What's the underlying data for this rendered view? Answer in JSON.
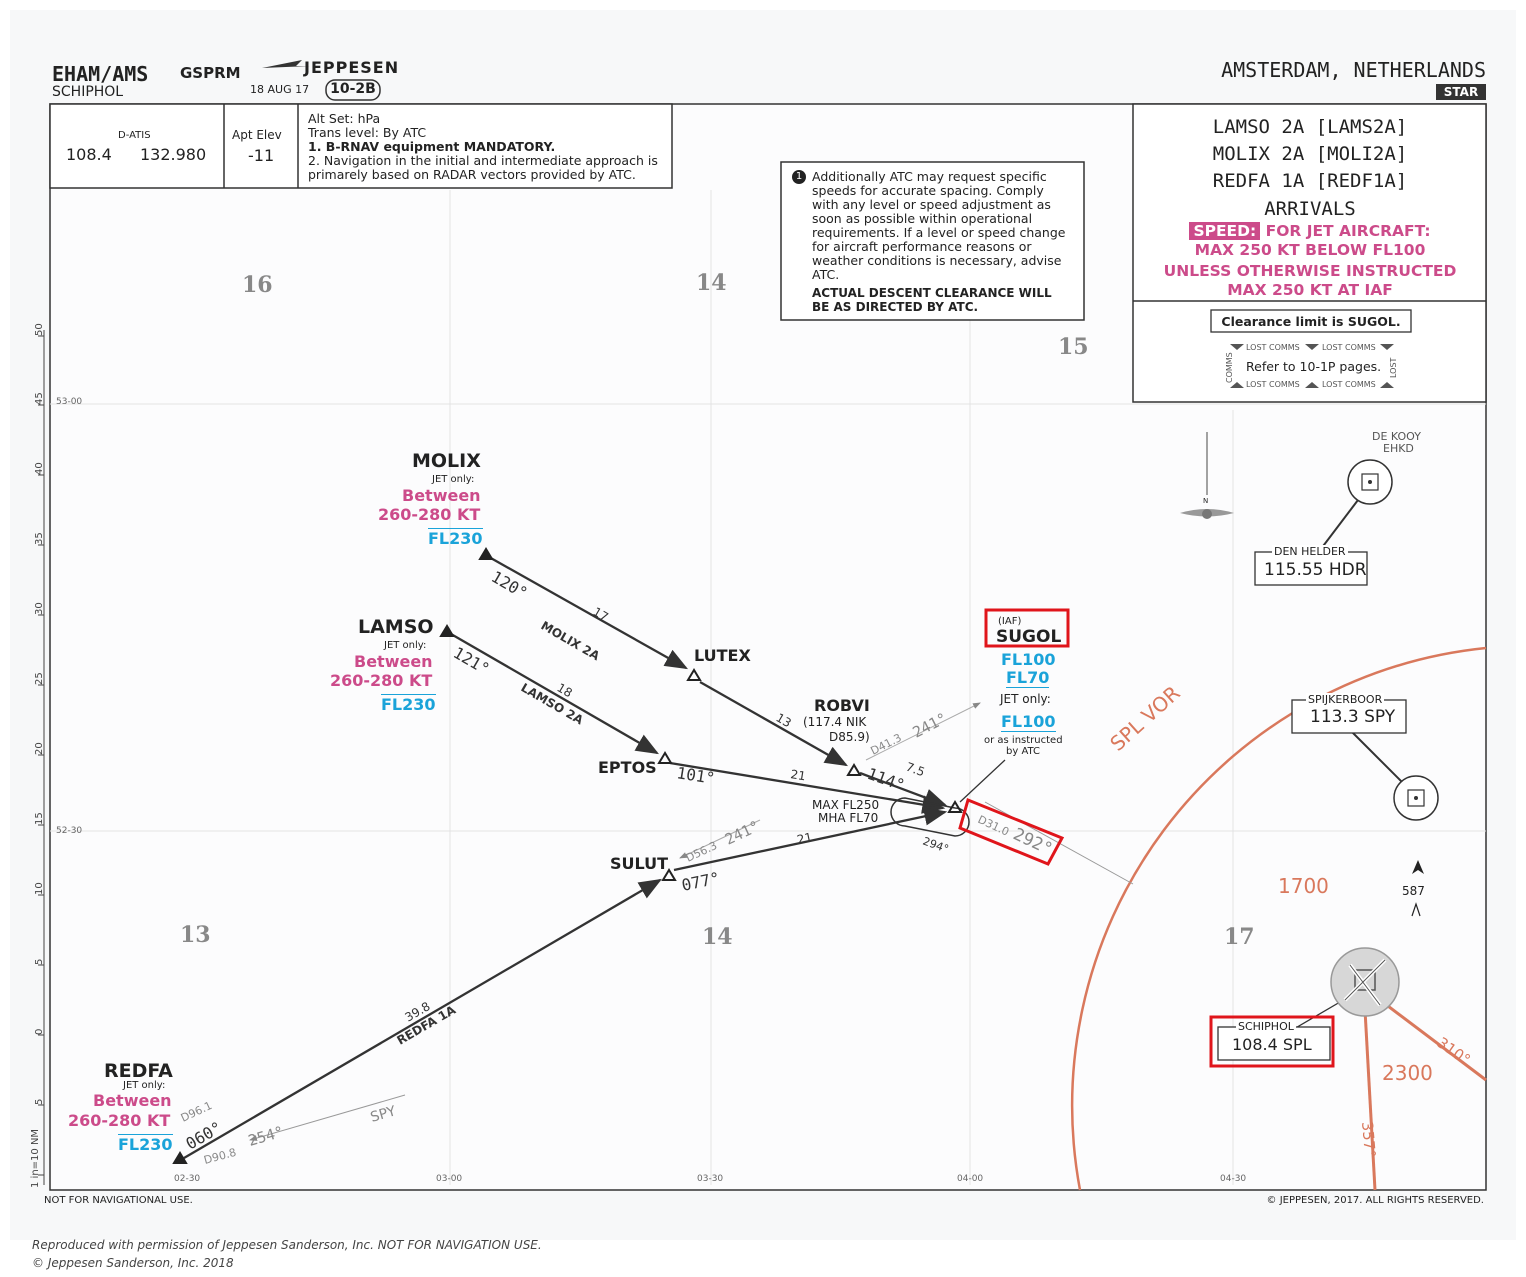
{
  "header": {
    "icao_iata": "EHAM/AMS",
    "chart_code": "GSPRM",
    "airport_name": "SCHIPHOL",
    "publisher": "JEPPESEN",
    "date": "18 AUG 17",
    "chart_index": "10-2B",
    "location": "AMSTERDAM, NETHERLANDS",
    "chart_type": "STAR"
  },
  "info_box": {
    "datis_label": "D-ATIS",
    "datis_freq_1": "108.4",
    "datis_freq_2": "132.980",
    "apt_elev_label": "Apt Elev",
    "apt_elev_value": "-11",
    "alt_set": "Alt Set: hPa",
    "trans_level": "Trans level: By ATC",
    "note1": "1. B-RNAV equipment MANDATORY.",
    "note2": "2. Navigation in the initial and intermediate approach is primarely based on RADAR vectors provided by ATC."
  },
  "atc_note": {
    "text": "Additionally ATC may request specific speeds for accurate spacing. Comply with any level or speed adjustment as soon as possible within operational requirements. If a level or speed change for aircraft performance reasons or weather conditions is necessary, advise ATC.",
    "clearance": "ACTUAL DESCENT CLEARANCE WILL BE AS DIRECTED BY ATC."
  },
  "title_box": {
    "line1": "LAMSO 2A [LAMS2A]",
    "line2": "MOLIX 2A [MOLI2A]",
    "line3": "REDFA 1A [REDF1A]",
    "line4": "ARRIVALS",
    "speed_label": "SPEED:",
    "speed_1": "FOR JET AIRCRAFT:",
    "speed_2": "MAX 250 KT BELOW FL100",
    "speed_3": "UNLESS OTHERWISE INSTRUCTED",
    "speed_4": "MAX 250 KT AT IAF"
  },
  "lost_comms": {
    "clearance_limit": "Clearance limit is SUGOL.",
    "lost_label": "LOST COMMS",
    "refer": "Refer to 10-1P pages.",
    "side_left": "COMMS",
    "side_right": "LOST"
  },
  "grid_mora": [
    "16",
    "14",
    "15",
    "13",
    "14",
    "17"
  ],
  "latitudes": [
    "53-00",
    "52-30"
  ],
  "longitudes": [
    "02-30",
    "03-00",
    "03-30",
    "04-00",
    "04-30"
  ],
  "scale": {
    "label": "1 in=10 NM",
    "ticks": [
      "50",
      "45",
      "40",
      "35",
      "30",
      "25",
      "20",
      "15",
      "10",
      "5",
      "0",
      "5"
    ]
  },
  "waypoints": {
    "molix": {
      "name": "MOLIX",
      "jet": "JET only:",
      "between": "Between",
      "speed": "260-280 KT",
      "level": "FL230",
      "course": "120°"
    },
    "lamso": {
      "name": "LAMSO",
      "jet": "JET only:",
      "between": "Between",
      "speed": "260-280 KT",
      "level": "FL230",
      "course": "121°"
    },
    "redfa": {
      "name": "REDFA",
      "jet": "JET only:",
      "between": "Between",
      "speed": "260-280 KT",
      "level": "FL230",
      "course": "060°",
      "d1": "D96.1",
      "d2": "D90.8",
      "radial": "254°",
      "nav": "SPY"
    },
    "lutex": {
      "name": "LUTEX"
    },
    "eptos": {
      "name": "EPTOS",
      "course": "101°"
    },
    "sulut": {
      "name": "SULUT",
      "course": "077°",
      "dme": "D56.3",
      "radial": "241°"
    },
    "robvi": {
      "name": "ROBVI",
      "nav": "(117.4 NIK",
      "dme": "D85.9)",
      "course": "114°",
      "dist_label": "D41.3",
      "radial": "241°"
    },
    "sugol": {
      "iaf": "(IAF)",
      "name": "SUGOL",
      "fl1": "FL100",
      "fl2": "FL70",
      "jet": "JET only:",
      "fl3": "FL100",
      "instr1": "or as instructed",
      "instr2": "by ATC",
      "dme": "D31.0",
      "radial": "292°"
    }
  },
  "legs": {
    "molix_route": "MOLIX 2A",
    "molix_dist": "17",
    "lutex_dist": "13",
    "lamso_route": "LAMSO 2A",
    "lamso_dist": "18",
    "eptos_dist": "21",
    "sulut_dist": "21",
    "robvi_dist": "7.5",
    "redfa_route": "REDFA 1A",
    "redfa_dist": "39.8",
    "holding_alt1": "MAX FL250",
    "holding_alt2": "MHA FL70",
    "holding_outbound": "294°"
  },
  "navaids": {
    "dekooy": {
      "line1": "DE KOOY",
      "line2": "EHKD"
    },
    "den_helder": {
      "name": "DEN HELDER",
      "freq": "115.55 HDR"
    },
    "spijkerboor": {
      "name": "SPIJKERBOOR",
      "freq": "113.3 SPY"
    },
    "schiphol": {
      "name": "SCHIPHOL",
      "freq": "108.4 SPL"
    },
    "spl_vor": "SPL VOR",
    "north": "N"
  },
  "terrain": {
    "msa1": "1700",
    "msa2": "2300",
    "obstacle": "587",
    "radial310": "310°",
    "radial357": "357°"
  },
  "footer": {
    "not_nav": "NOT FOR NAVIGATIONAL USE.",
    "copyright": "© JEPPESEN, 2017. ALL RIGHTS RESERVED.",
    "repro": "Reproduced with permission of Jeppesen Sanderson, Inc. NOT FOR NAVIGATION USE.",
    "repro2": "© Jeppesen Sanderson, Inc. 2018"
  },
  "colors": {
    "magenta": "#cc4b8a",
    "cyan": "#1aa3d9",
    "terrain": "#d9785c",
    "highlight": "#e0151b",
    "route": "#333333"
  }
}
